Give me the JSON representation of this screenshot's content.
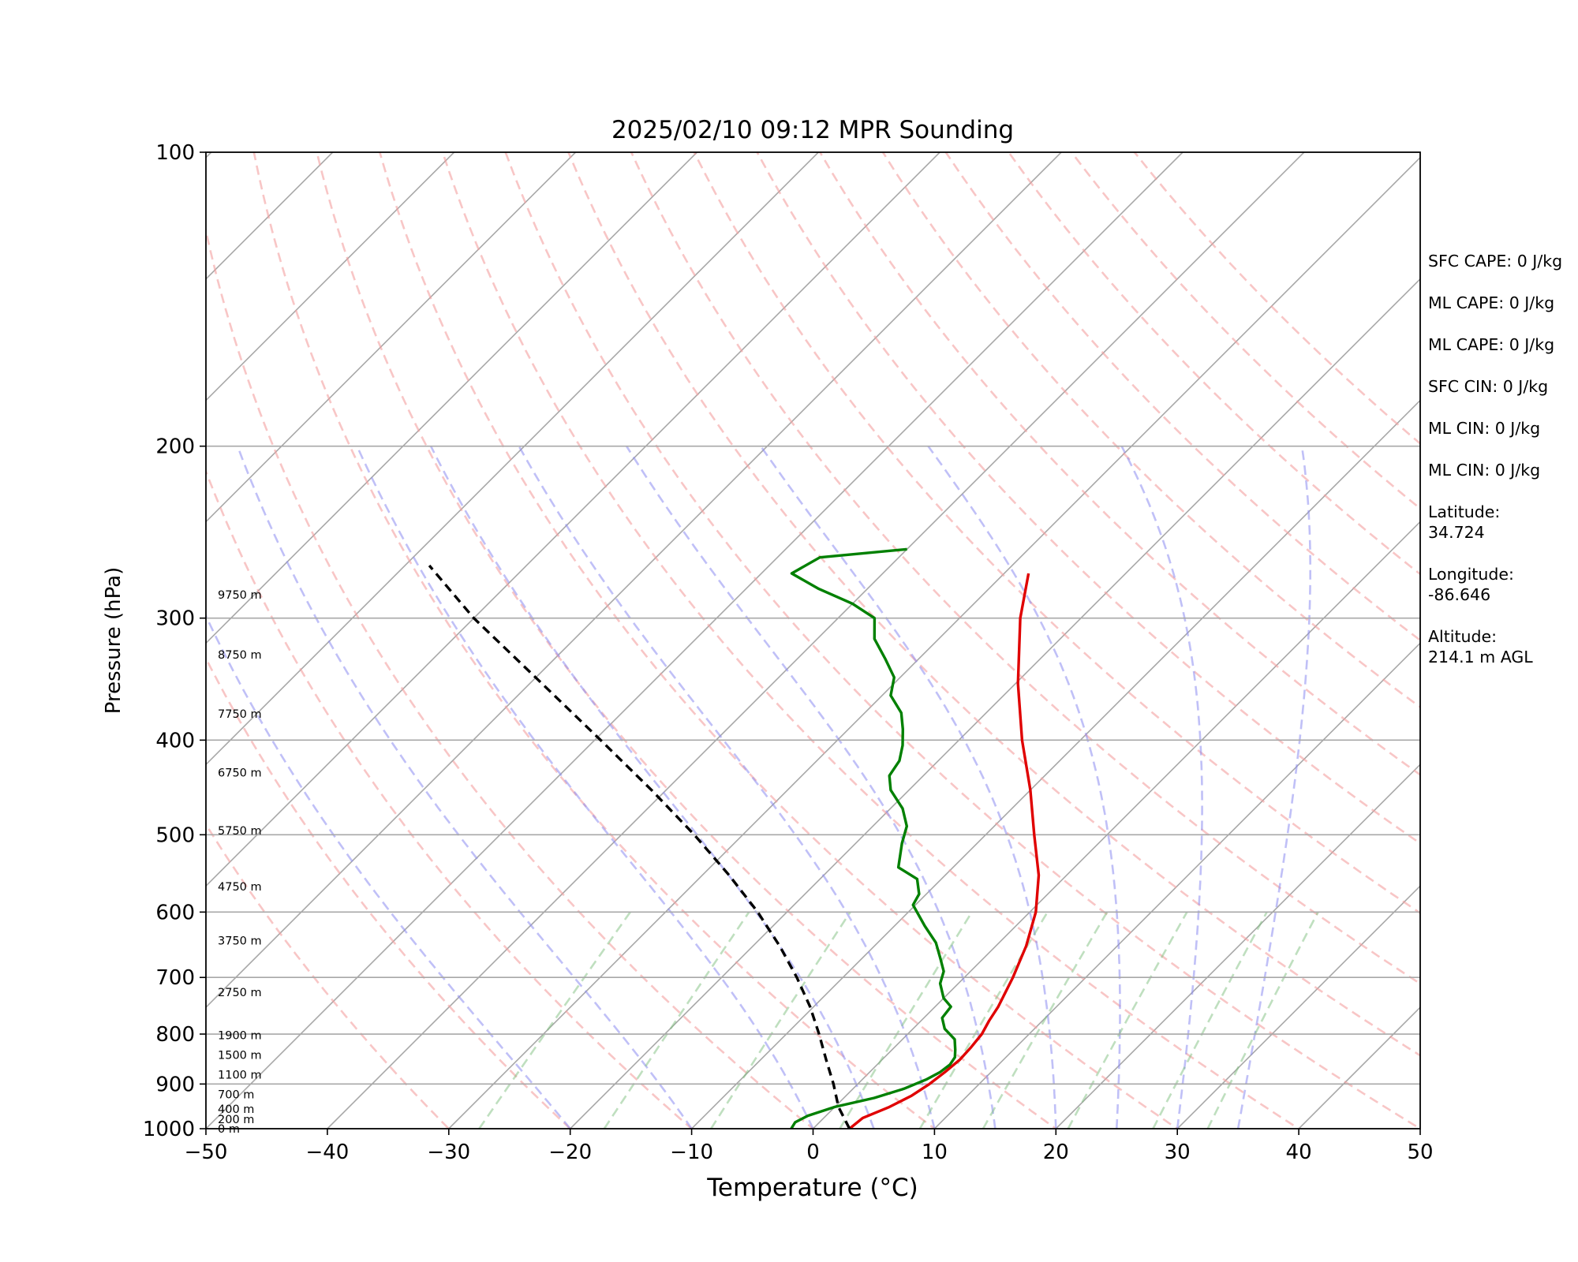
{
  "title": "2025/02/10 09:12 MPR Sounding",
  "chart_data": {
    "type": "line",
    "diagram": "skew-T log-P",
    "title": "2025/02/10 09:12 MPR Sounding",
    "xlabel": "Temperature (°C)",
    "ylabel": "Pressure (hPa)",
    "xlim": [
      -50,
      50
    ],
    "ylim": [
      1000,
      100
    ],
    "y_scale": "log",
    "x_ticks": [
      "−50",
      "−40",
      "−30",
      "−20",
      "−10",
      "0",
      "10",
      "20",
      "30",
      "40",
      "50"
    ],
    "y_ticks": [
      "100",
      "200",
      "300",
      "400",
      "500",
      "600",
      "700",
      "800",
      "900",
      "1000"
    ],
    "grid": true,
    "series": [
      {
        "color": "#e00000",
        "kind": "temperature",
        "points": [
          [
            1000,
            3.0
          ],
          [
            975,
            3.2
          ],
          [
            950,
            4.5
          ],
          [
            925,
            5.4
          ],
          [
            900,
            5.9
          ],
          [
            875,
            6.2
          ],
          [
            850,
            6.4
          ],
          [
            825,
            6.3
          ],
          [
            800,
            6.1
          ],
          [
            775,
            5.6
          ],
          [
            750,
            5.2
          ],
          [
            700,
            4.0
          ],
          [
            650,
            2.5
          ],
          [
            600,
            0.5
          ],
          [
            550,
            -2.3
          ],
          [
            500,
            -6.0
          ],
          [
            450,
            -10.0
          ],
          [
            400,
            -14.8
          ],
          [
            350,
            -19.8
          ],
          [
            300,
            -25.0
          ],
          [
            270,
            -28.0
          ]
        ]
      },
      {
        "color": "#008000",
        "kind": "dewpoint",
        "points": [
          [
            1000,
            -1.8
          ],
          [
            985,
            -2.0
          ],
          [
            970,
            -1.5
          ],
          [
            950,
            0.0
          ],
          [
            930,
            2.5
          ],
          [
            910,
            4.2
          ],
          [
            890,
            5.3
          ],
          [
            875,
            5.8
          ],
          [
            860,
            6.0
          ],
          [
            845,
            5.8
          ],
          [
            830,
            5.2
          ],
          [
            810,
            4.3
          ],
          [
            790,
            2.6
          ],
          [
            770,
            1.5
          ],
          [
            750,
            1.3
          ],
          [
            735,
            0.0
          ],
          [
            710,
            -1.5
          ],
          [
            690,
            -2.2
          ],
          [
            670,
            -3.5
          ],
          [
            645,
            -5.2
          ],
          [
            620,
            -7.5
          ],
          [
            590,
            -10.2
          ],
          [
            575,
            -10.6
          ],
          [
            555,
            -12.0
          ],
          [
            540,
            -14.5
          ],
          [
            510,
            -16.2
          ],
          [
            490,
            -17.2
          ],
          [
            470,
            -19.0
          ],
          [
            450,
            -21.5
          ],
          [
            435,
            -22.8
          ],
          [
            420,
            -23.2
          ],
          [
            405,
            -24.2
          ],
          [
            390,
            -25.5
          ],
          [
            375,
            -27.0
          ],
          [
            360,
            -29.3
          ],
          [
            345,
            -30.5
          ],
          [
            330,
            -32.8
          ],
          [
            315,
            -35.3
          ],
          [
            300,
            -37.0
          ],
          [
            290,
            -40.0
          ],
          [
            280,
            -44.0
          ],
          [
            270,
            -47.5
          ],
          [
            260,
            -46.5
          ],
          [
            255,
            -40.0
          ]
        ]
      },
      {
        "color": "#000000",
        "kind": "parcel",
        "points": [
          [
            1000,
            3.0
          ],
          [
            950,
            0.3
          ],
          [
            900,
            -2.0
          ],
          [
            850,
            -4.6
          ],
          [
            800,
            -7.3
          ],
          [
            750,
            -10.3
          ],
          [
            700,
            -13.8
          ],
          [
            650,
            -17.8
          ],
          [
            600,
            -22.4
          ],
          [
            550,
            -27.8
          ],
          [
            500,
            -34.0
          ],
          [
            450,
            -41.2
          ],
          [
            400,
            -49.5
          ],
          [
            350,
            -59.0
          ],
          [
            300,
            -70.0
          ],
          [
            265,
            -78.0
          ]
        ]
      }
    ],
    "height_labels": [
      {
        "text": "0 m",
        "p": 1000
      },
      {
        "text": "200 m",
        "p": 978
      },
      {
        "text": "400 m",
        "p": 955
      },
      {
        "text": "700 m",
        "p": 922
      },
      {
        "text": "1100 m",
        "p": 880
      },
      {
        "text": "1500 m",
        "p": 840
      },
      {
        "text": "1900 m",
        "p": 802
      },
      {
        "text": "2750 m",
        "p": 725
      },
      {
        "text": "3750 m",
        "p": 642
      },
      {
        "text": "4750 m",
        "p": 565
      },
      {
        "text": "5750 m",
        "p": 495
      },
      {
        "text": "6750 m",
        "p": 432
      },
      {
        "text": "7750 m",
        "p": 376
      },
      {
        "text": "8750 m",
        "p": 327
      },
      {
        "text": "9750 m",
        "p": 284
      }
    ],
    "isotherms": [
      -160,
      -150,
      -140,
      -130,
      -120,
      -110,
      -100,
      -90,
      -80,
      -70,
      -60,
      -50,
      -40,
      -30,
      -20,
      -10,
      0,
      10,
      20,
      30,
      40,
      50
    ],
    "dry_adiabats": [
      -30,
      -20,
      -10,
      0,
      10,
      20,
      30,
      40,
      50,
      60,
      70,
      80,
      90,
      100,
      110,
      120,
      130,
      140,
      150
    ],
    "moist_adiabats": [
      -20,
      -10,
      0,
      5,
      10,
      15,
      20,
      25,
      30,
      35
    ],
    "mixing_ratio_bottoms": [
      -27.5,
      -17.2,
      -8.4,
      2.2,
      8.8,
      14.0,
      21.0,
      28.0,
      32.5
    ]
  },
  "stats": [
    {
      "label": "SFC CAPE: 0 J/kg"
    },
    {
      "label": "ML CAPE: 0 J/kg"
    },
    {
      "label": "ML CAPE: 0 J/kg"
    },
    {
      "label": "SFC CIN: 0 J/kg"
    },
    {
      "label": "ML CIN: 0 J/kg"
    },
    {
      "label": "ML CIN: 0 J/kg"
    },
    {
      "label": "Latitude:",
      "value": "34.724"
    },
    {
      "label": "Longitude:",
      "value": "-86.646"
    },
    {
      "label": "Altitude:",
      "value": "214.1 m AGL"
    }
  ]
}
